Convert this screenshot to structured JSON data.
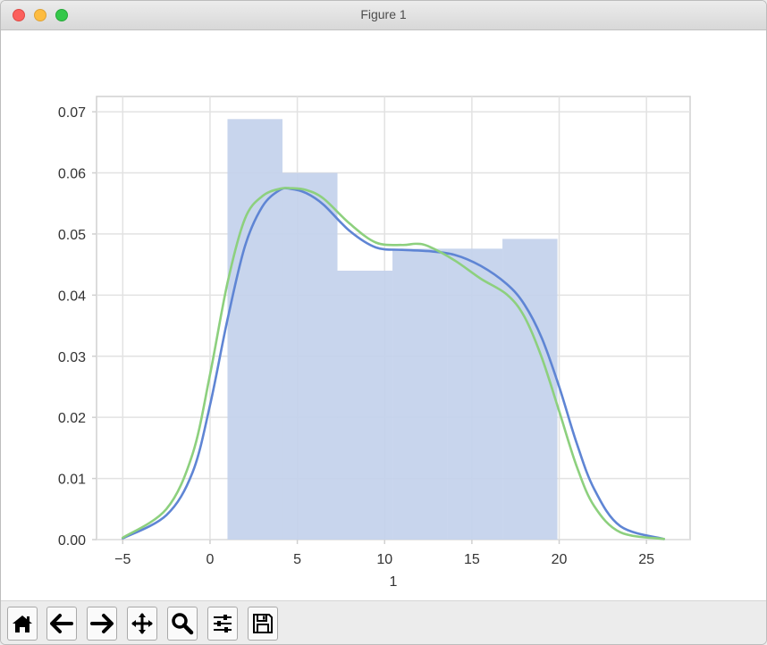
{
  "window": {
    "title": "Figure 1"
  },
  "toolbar": {
    "buttons": [
      {
        "name": "home-button",
        "icon": "home-icon"
      },
      {
        "name": "back-button",
        "icon": "arrow-left-icon"
      },
      {
        "name": "forward-button",
        "icon": "arrow-right-icon"
      },
      {
        "name": "pan-button",
        "icon": "move-icon"
      },
      {
        "name": "zoom-button",
        "icon": "magnifier-icon"
      },
      {
        "name": "configure-subplots-button",
        "icon": "sliders-icon"
      },
      {
        "name": "save-button",
        "icon": "floppy-disk-icon"
      }
    ]
  },
  "chart_data": {
    "type": "bar",
    "title": "",
    "xlabel": "1",
    "ylabel": "",
    "xlim": [
      -6.5,
      27.5
    ],
    "ylim": [
      0,
      0.0725
    ],
    "grid": true,
    "xticks": [
      -5,
      0,
      5,
      10,
      15,
      20,
      25
    ],
    "xtick_labels": [
      "−5",
      "0",
      "5",
      "10",
      "15",
      "20",
      "25"
    ],
    "yticks": [
      0,
      0.01,
      0.02,
      0.03,
      0.04,
      0.05,
      0.06,
      0.07
    ],
    "ytick_labels": [
      "0.00",
      "0.01",
      "0.02",
      "0.03",
      "0.04",
      "0.05",
      "0.06",
      "0.07"
    ],
    "histogram": {
      "color": "#c3d1ec",
      "bins": [
        {
          "x0": 1.0,
          "x1": 4.15,
          "value": 0.0688
        },
        {
          "x0": 4.15,
          "x1": 7.3,
          "value": 0.06
        },
        {
          "x0": 7.3,
          "x1": 10.45,
          "value": 0.044
        },
        {
          "x0": 10.45,
          "x1": 13.6,
          "value": 0.0476
        },
        {
          "x0": 13.6,
          "x1": 16.75,
          "value": 0.0476
        },
        {
          "x0": 16.75,
          "x1": 19.9,
          "value": 0.0492
        }
      ]
    },
    "series": [
      {
        "name": "kde blue",
        "color": "#5f85d4",
        "x": [
          -5.0,
          -2.5,
          -1.0,
          0.0,
          1.0,
          2.0,
          3.0,
          4.0,
          4.6,
          5.5,
          6.5,
          8.0,
          9.5,
          11.0,
          12.5,
          14.0,
          15.5,
          17.0,
          18.0,
          19.0,
          20.0,
          21.0,
          22.0,
          23.5,
          26.0
        ],
        "y": [
          0.0002,
          0.004,
          0.011,
          0.022,
          0.036,
          0.048,
          0.0545,
          0.0572,
          0.0574,
          0.0567,
          0.0548,
          0.0505,
          0.0478,
          0.0474,
          0.0472,
          0.0466,
          0.0448,
          0.0418,
          0.0385,
          0.033,
          0.025,
          0.0158,
          0.0083,
          0.0022,
          0.0001
        ]
      },
      {
        "name": "kde green",
        "color": "#8dd07e",
        "x": [
          -5.0,
          -2.5,
          -1.0,
          0.0,
          1.0,
          2.0,
          3.0,
          4.0,
          4.6,
          5.5,
          6.5,
          8.0,
          9.5,
          11.0,
          11.8,
          12.5,
          14.0,
          15.5,
          17.0,
          18.0,
          19.0,
          20.0,
          21.0,
          22.0,
          23.5,
          26.0
        ],
        "y": [
          0.0003,
          0.005,
          0.014,
          0.027,
          0.042,
          0.0525,
          0.0562,
          0.0574,
          0.0575,
          0.0572,
          0.0558,
          0.0517,
          0.0486,
          0.0482,
          0.0484,
          0.048,
          0.0457,
          0.0427,
          0.0401,
          0.0365,
          0.0298,
          0.021,
          0.012,
          0.0055,
          0.0012,
          0.0001
        ]
      }
    ]
  }
}
